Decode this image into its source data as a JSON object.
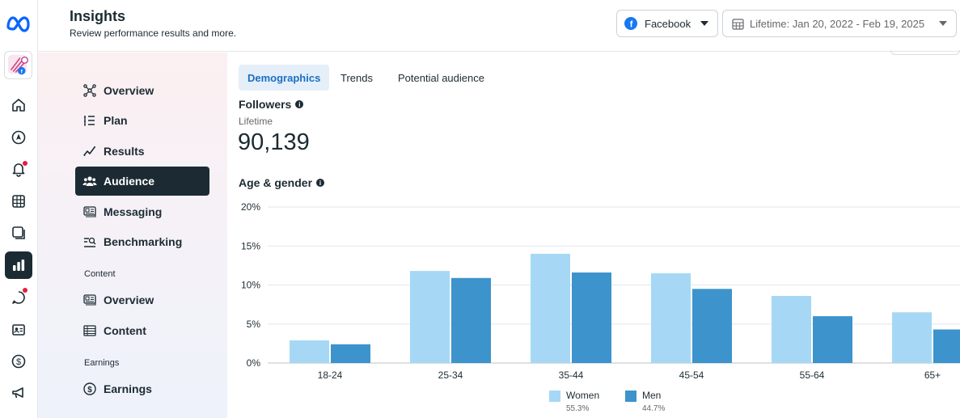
{
  "app": {
    "title": "Insights",
    "subtitle": "Review performance results and more."
  },
  "header": {
    "platform_label": "Facebook",
    "date_range_label": "Lifetime: Jan 20, 2022 - Feb 19, 2025"
  },
  "colors": {
    "accent": "#1b6fc2",
    "active_nav": "#1c2b33",
    "women": "#a6d8f5",
    "men": "#3d93cc"
  },
  "rail": {
    "icons": [
      "meta-logo-icon",
      "home-icon",
      "explore-icon",
      "notifications-icon",
      "planner-icon",
      "content-icon",
      "insights-icon",
      "inbox-icon",
      "contacts-icon",
      "monetization-icon",
      "ads-icon"
    ]
  },
  "nav": {
    "items": [
      {
        "label": "Overview",
        "icon": "overview-icon"
      },
      {
        "label": "Plan",
        "icon": "plan-icon"
      },
      {
        "label": "Results",
        "icon": "results-icon"
      },
      {
        "label": "Audience",
        "icon": "audience-icon"
      },
      {
        "label": "Messaging",
        "icon": "messaging-icon"
      },
      {
        "label": "Benchmarking",
        "icon": "benchmarking-icon"
      }
    ],
    "content_section": "Content",
    "content_items": [
      {
        "label": "Overview",
        "icon": "content-overview-icon"
      },
      {
        "label": "Content",
        "icon": "content-table-icon"
      }
    ],
    "earnings_section": "Earnings",
    "earnings_items": [
      {
        "label": "Earnings",
        "icon": "earnings-icon"
      }
    ]
  },
  "tabs": [
    {
      "label": "Demographics"
    },
    {
      "label": "Trends"
    },
    {
      "label": "Potential audience"
    }
  ],
  "followers": {
    "label": "Followers",
    "period": "Lifetime",
    "value": "90,139"
  },
  "age_gender": {
    "label": "Age & gender"
  },
  "chart_data": {
    "type": "bar",
    "categories": [
      "18-24",
      "25-34",
      "35-44",
      "45-54",
      "55-64",
      "65+"
    ],
    "series": [
      {
        "name": "Women",
        "values": [
          2.9,
          11.8,
          14.0,
          11.5,
          8.6,
          6.5
        ]
      },
      {
        "name": "Men",
        "values": [
          2.4,
          10.9,
          11.6,
          9.5,
          6.0,
          4.3
        ]
      }
    ],
    "ylim": [
      0,
      20
    ],
    "yticks": [
      "0%",
      "5%",
      "10%",
      "15%",
      "20%"
    ],
    "grid": true,
    "legend": [
      {
        "name": "Women",
        "share": "55.3%"
      },
      {
        "name": "Men",
        "share": "44.7%"
      }
    ]
  }
}
